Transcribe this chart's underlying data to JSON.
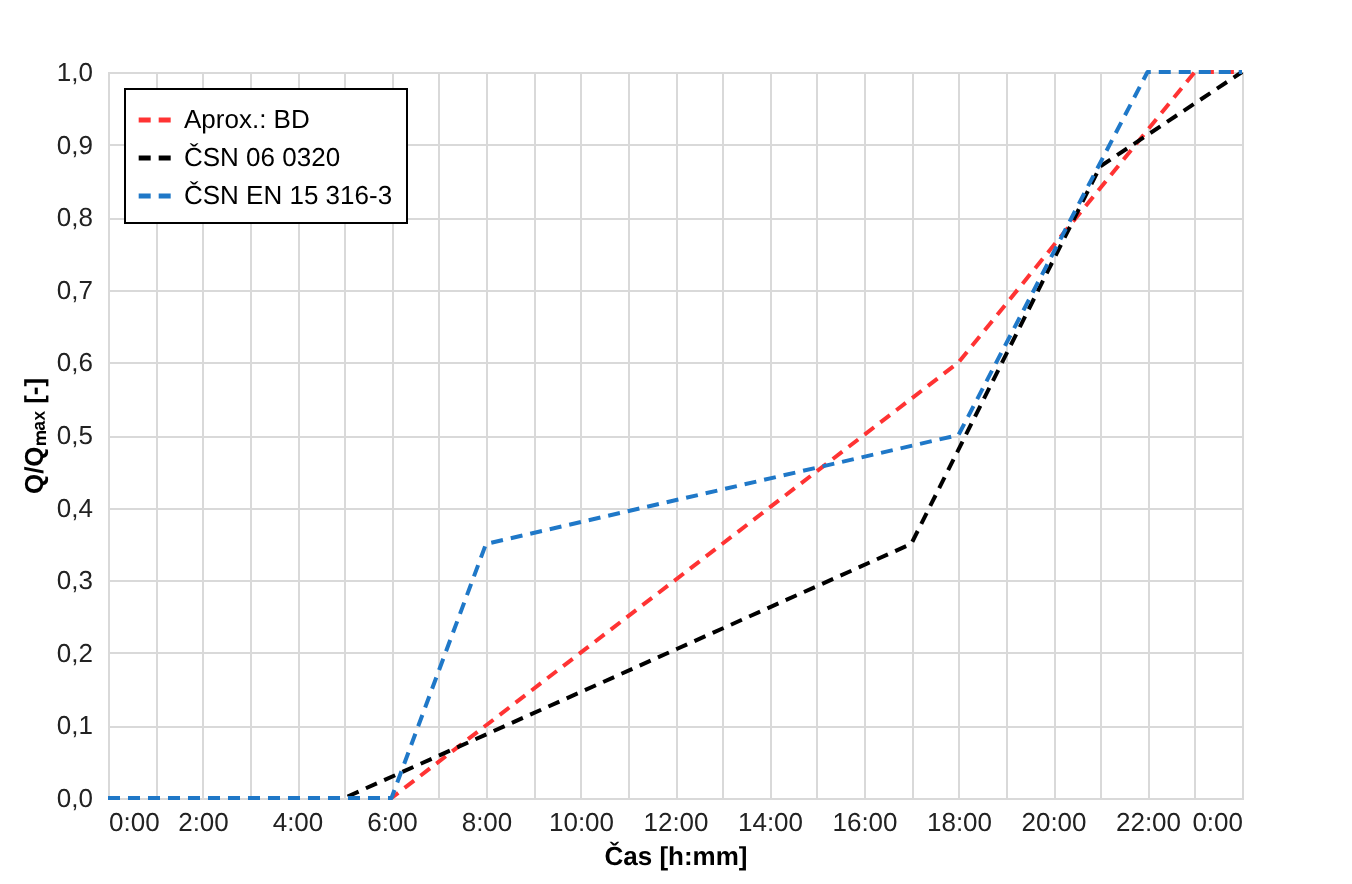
{
  "chart_data": {
    "type": "line",
    "xlabel": "Čas [h:mm]",
    "ylabel": "Q/Qₘₐₓ [-]",
    "xlim": [
      0,
      24
    ],
    "ylim": [
      0,
      1
    ],
    "xticks": [
      {
        "value": 0,
        "label": "0:00"
      },
      {
        "value": 1,
        "label": null
      },
      {
        "value": 2,
        "label": "2:00"
      },
      {
        "value": 3,
        "label": null
      },
      {
        "value": 4,
        "label": "4:00"
      },
      {
        "value": 5,
        "label": null
      },
      {
        "value": 6,
        "label": "6:00"
      },
      {
        "value": 7,
        "label": null
      },
      {
        "value": 8,
        "label": "8:00"
      },
      {
        "value": 9,
        "label": null
      },
      {
        "value": 10,
        "label": "10:00"
      },
      {
        "value": 11,
        "label": null
      },
      {
        "value": 12,
        "label": "12:00"
      },
      {
        "value": 13,
        "label": null
      },
      {
        "value": 14,
        "label": "14:00"
      },
      {
        "value": 15,
        "label": null
      },
      {
        "value": 16,
        "label": "16:00"
      },
      {
        "value": 17,
        "label": null
      },
      {
        "value": 18,
        "label": "18:00"
      },
      {
        "value": 19,
        "label": null
      },
      {
        "value": 20,
        "label": "20:00"
      },
      {
        "value": 21,
        "label": null
      },
      {
        "value": 22,
        "label": "22:00"
      },
      {
        "value": 23,
        "label": null
      },
      {
        "value": 24,
        "label": "0:00"
      }
    ],
    "yticks": [
      {
        "value": 0,
        "label": "0,0"
      },
      {
        "value": 0.1,
        "label": "0,1"
      },
      {
        "value": 0.2,
        "label": "0,2"
      },
      {
        "value": 0.3,
        "label": "0,3"
      },
      {
        "value": 0.4,
        "label": "0,4"
      },
      {
        "value": 0.5,
        "label": "0,5"
      },
      {
        "value": 0.6,
        "label": "0,6"
      },
      {
        "value": 0.7,
        "label": "0,7"
      },
      {
        "value": 0.8,
        "label": "0,8"
      },
      {
        "value": 0.9,
        "label": "0,9"
      },
      {
        "value": 1,
        "label": "1,0"
      }
    ],
    "grid": true,
    "legend": "top left",
    "marker": "none",
    "series": [
      {
        "name": "Aprox.: BD",
        "color": "#ff3333",
        "line_style": "dashed",
        "x": [
          0,
          6,
          18,
          23,
          24
        ],
        "values": [
          0,
          0,
          0.6,
          1.0,
          1.0
        ]
      },
      {
        "name": "ČSN 06 0320",
        "color": "#000000",
        "line_style": "dashed",
        "x": [
          0,
          5,
          17,
          21,
          24
        ],
        "values": [
          0,
          0,
          0.35,
          0.87,
          1.0
        ]
      },
      {
        "name": "ČSN EN 15 316-3",
        "color": "#1f78c8",
        "line_style": "dashed",
        "x": [
          0,
          6,
          8,
          18,
          22,
          24
        ],
        "values": [
          0,
          0,
          0.35,
          0.5,
          1.0,
          1.0
        ]
      }
    ]
  }
}
